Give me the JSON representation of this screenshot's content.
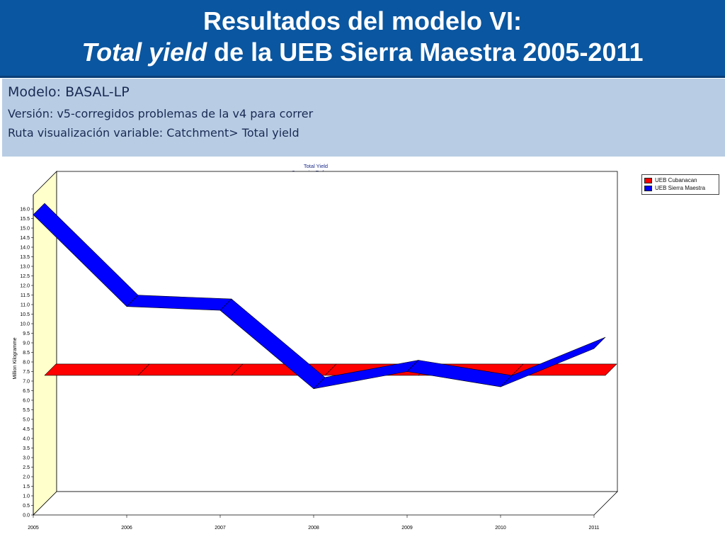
{
  "header": {
    "line1": "Resultados del modelo VI:",
    "line2_italic": "Total yield",
    "line2_rest": " de la UEB Sierra Maestra 2005-2011"
  },
  "info": {
    "model": "Modelo: BASAL-LP",
    "version": "Versión: v5-corregidos problemas de la v4 para correr",
    "path": "Ruta visualización variable: Catchment> Total yield"
  },
  "colors": {
    "header_bg": "#0a56a0",
    "info_bg": "#b8cde4",
    "wall": "#ffffcc",
    "series_red": "#ff0000",
    "series_blue": "#0000ff"
  },
  "chart_data": {
    "type": "line",
    "title": "Total Yield",
    "subtitle": "Scenario: Reference",
    "ylabel": "Million Kilogramme",
    "xlabel": "",
    "x": [
      2005,
      2006,
      2007,
      2008,
      2009,
      2010,
      2011
    ],
    "ylim": [
      0,
      16
    ],
    "ytick_step": 0.5,
    "grid": false,
    "legend_position": "top-right",
    "series": [
      {
        "name": "UEB Cubanacan",
        "color": "#ff0000",
        "values": [
          7.3,
          7.3,
          7.3,
          7.3,
          7.3,
          7.3,
          7.3
        ]
      },
      {
        "name": "UEB Sierra Maestra",
        "color": "#0000ff",
        "values": [
          15.7,
          10.9,
          10.7,
          6.6,
          7.5,
          6.7,
          8.7
        ]
      }
    ]
  }
}
